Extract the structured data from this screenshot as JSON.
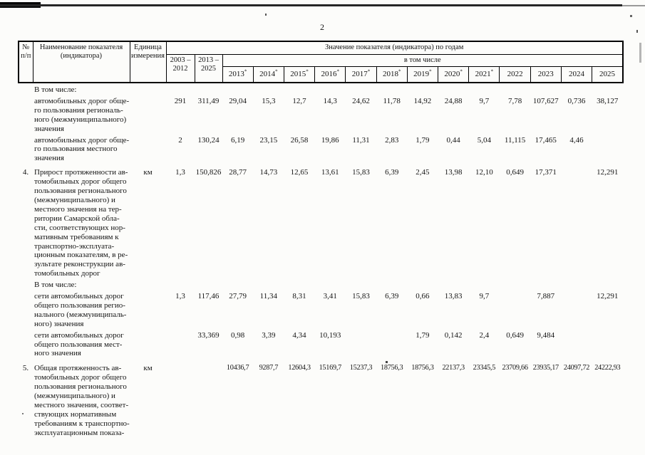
{
  "page": {
    "number": "2"
  },
  "table": {
    "header": {
      "col_num": "№\nп/п",
      "col_name": "Наименование показателя\n(индикатора)",
      "col_unit": "Единица\nизмерения",
      "col_years_group": "Значение показателя (индикатора) по годам",
      "col_period1": "2003 –\n2012",
      "col_period2": "2013 –\n2025",
      "col_subgroup": "в том числе",
      "years": [
        {
          "label": "2013",
          "star": true
        },
        {
          "label": "2014",
          "star": true
        },
        {
          "label": "2015",
          "star": true
        },
        {
          "label": "2016",
          "star": true
        },
        {
          "label": "2017",
          "star": true
        },
        {
          "label": "2018",
          "star": true
        },
        {
          "label": "2019",
          "star": true
        },
        {
          "label": "2020",
          "star": true
        },
        {
          "label": "2021",
          "star": true
        },
        {
          "label": "2022",
          "star": false
        },
        {
          "label": "2023",
          "star": false
        },
        {
          "label": "2024",
          "star": false
        },
        {
          "label": "2025",
          "star": false
        }
      ]
    },
    "rows": [
      {
        "num": "",
        "unit": "",
        "name": "В том числе:",
        "values": [
          "",
          "",
          "",
          "",
          "",
          "",
          "",
          "",
          "",
          "",
          "",
          "",
          "",
          "",
          ""
        ]
      },
      {
        "num": "",
        "unit": "",
        "name": "автомобильных дорог обще-\nго пользования региональ-\nного (межмуниципального)\nзначения",
        "values": [
          "291",
          "311,49",
          "29,04",
          "15,3",
          "12,7",
          "14,3",
          "24,62",
          "11,78",
          "14,92",
          "24,88",
          "9,7",
          "7,78",
          "107,627",
          "0,736",
          "38,127"
        ]
      },
      {
        "num": "",
        "unit": "",
        "name": "автомобильных дорог обще-\nго пользования местного\nзначения",
        "values": [
          "2",
          "130,24",
          "6,19",
          "23,15",
          "26,58",
          "19,86",
          "11,31",
          "2,83",
          "1,79",
          "0,44",
          "5,04",
          "11,115",
          "17,465",
          "4,46",
          ""
        ]
      },
      {
        "num": "4.",
        "unit": "км",
        "gap": 7,
        "name": "Прирост протяженности ав-\nтомобильных дорог общего\nпользования регионального\n(межмуниципального) и\nместного значения на тер-\nритории Самарской обла-\nсти, соответствующих нор-\nмативным требованиям к\nтранспортно-эксплуата-\nционным показателям, в ре-\nзультате реконструкции ав-\nтомобильных дорог",
        "values": [
          "1,3",
          "150,826",
          "28,77",
          "14,73",
          "12,65",
          "13,61",
          "15,83",
          "6,39",
          "2,45",
          "13,98",
          "12,10",
          "0,649",
          "17,371",
          "",
          "12,291"
        ]
      },
      {
        "num": "",
        "unit": "",
        "name": "В том числе:",
        "values": [
          "",
          "",
          "",
          "",
          "",
          "",
          "",
          "",
          "",
          "",
          "",
          "",
          "",
          "",
          ""
        ]
      },
      {
        "num": "",
        "unit": "",
        "name": "сети автомобильных дорог\nобщего пользования регио-\nнального (межмуниципаль-\nного) значения",
        "values": [
          "1,3",
          "117,46",
          "27,79",
          "11,34",
          "8,31",
          "3,41",
          "15,83",
          "6,39",
          "0,66",
          "13,83",
          "9,7",
          "",
          "7,887",
          "",
          "12,291"
        ]
      },
      {
        "num": "",
        "unit": "",
        "name": "сети автомобильных дорог\nобщего пользования мест-\nного значения",
        "values": [
          "",
          "33,369",
          "0,98",
          "3,39",
          "4,34",
          "10,193",
          "",
          "",
          "1,79",
          "0,142",
          "2,4",
          "0,649",
          "9,484",
          "",
          ""
        ]
      },
      {
        "num": "5.",
        "unit": "км",
        "gap": 8,
        "small": true,
        "name": "Общая протяженность ав-\nтомобильных дорог общего\nпользования регионального\n(межмуниципального) и\nместного значения, соответ-\nствующих нормативным\nтребованиям к транспортно-\nэксплуатационным показа-",
        "values": [
          "",
          "",
          "10436,7",
          "9287,7",
          "12604,3",
          "15169,7",
          "15237,3",
          "18756,3",
          "18756,3",
          "22137,3",
          "23345,5",
          "23709,66",
          "23935,17",
          "24097,72",
          "24222,93"
        ]
      }
    ]
  }
}
